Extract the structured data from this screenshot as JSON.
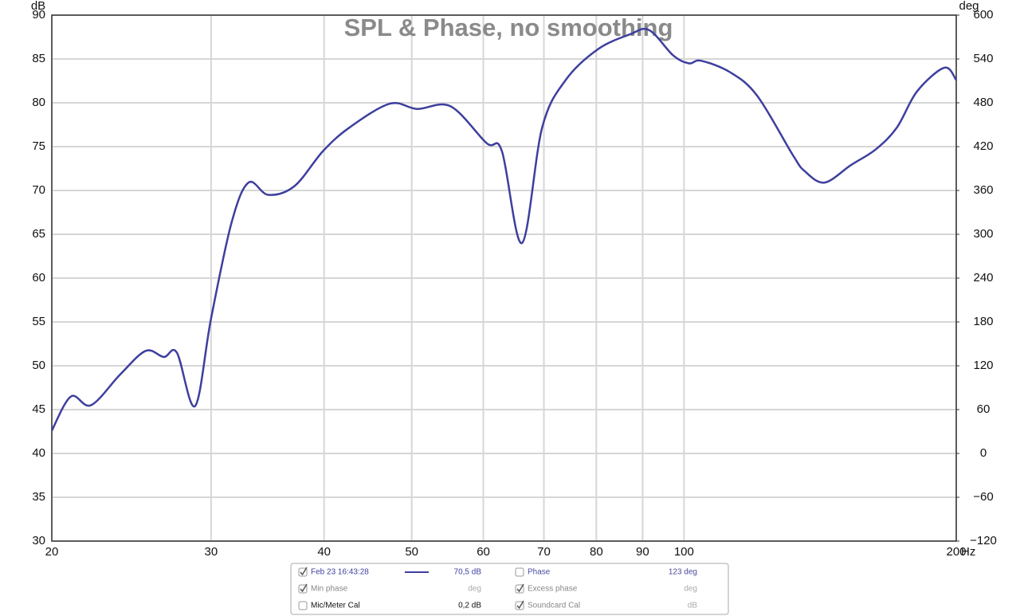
{
  "chart_data": {
    "type": "line",
    "title": "SPL & Phase, no smoothing",
    "y_unit": "dB",
    "y2_unit": "deg",
    "x_unit": "Hz",
    "log_x": true,
    "grid": true,
    "xlim": [
      20,
      200
    ],
    "xticks": [
      20,
      30,
      40,
      50,
      60,
      70,
      80,
      90,
      100,
      200
    ],
    "ylim": [
      30,
      90
    ],
    "yticks": [
      30,
      35,
      40,
      45,
      50,
      55,
      60,
      65,
      70,
      75,
      80,
      85,
      90
    ],
    "y2lim": [
      -120,
      600
    ],
    "y2ticks": [
      {
        "value": -120,
        "label": "−120"
      },
      {
        "value": -60,
        "label": "−60"
      },
      0,
      60,
      120,
      180,
      240,
      300,
      360,
      420,
      480,
      540,
      600
    ],
    "x": [
      20,
      21.0,
      22.1,
      23.8,
      25.4,
      26.6,
      27.5,
      28.8,
      30,
      31.6,
      33.0,
      34.7,
      37.1,
      39.9,
      42.7,
      47.3,
      50.7,
      55.2,
      60.5,
      62.9,
      66.2,
      69.7,
      74.0,
      80.3,
      87.1,
      91.5,
      97.3,
      101.3,
      104.4,
      112.4,
      120.5,
      132,
      136,
      143,
      153,
      163,
      172,
      181,
      194,
      200
    ],
    "series": [
      {
        "name": "Feb 23 16:43:28",
        "color": "#3d3f9e",
        "values": [
          42.6,
          46.5,
          45.5,
          49,
          51.7,
          51,
          51.5,
          45.4,
          55.4,
          66.3,
          70.9,
          69.5,
          70.5,
          74.5,
          77.2,
          79.9,
          79.3,
          79.6,
          75.4,
          74.5,
          64,
          77.2,
          82.6,
          86.1,
          87.8,
          88.3,
          85.4,
          84.5,
          84.8,
          83.5,
          80.8,
          74,
          72.2,
          70.9,
          72.9,
          74.7,
          77.2,
          81.3,
          84,
          82.6
        ],
        "readout": "70,5 dB",
        "checked": true
      }
    ]
  },
  "panel": [
    {
      "label": "Phase",
      "readout": "123 deg",
      "checked": false
    },
    {
      "label": "Min phase",
      "readout": "deg",
      "checked": true
    },
    {
      "label": "Excess phase",
      "readout": "deg",
      "checked": true
    },
    {
      "label": "Mic/Meter Cal",
      "readout": "0,2 dB",
      "checked": false
    },
    {
      "label": "Soundcard Cal",
      "readout": "dB",
      "checked": true
    }
  ]
}
